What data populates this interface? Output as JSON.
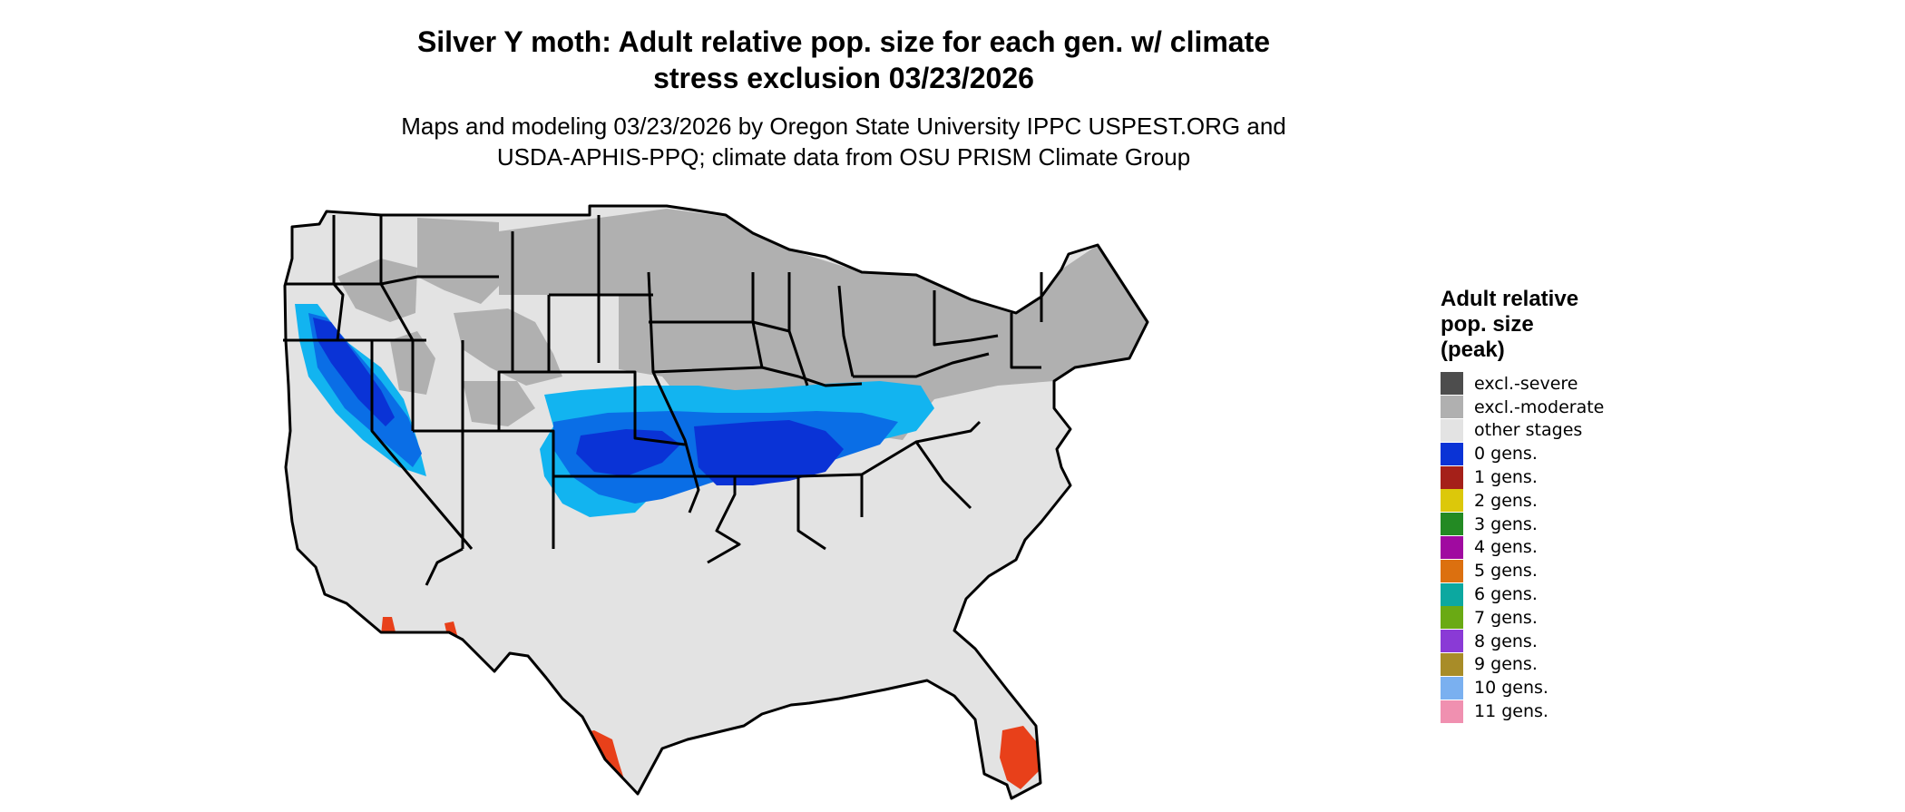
{
  "title": "Silver Y moth: Adult relative pop. size for each gen. w/ climate stress exclusion 03/23/2026",
  "title_lines": [
    "Silver Y moth: Adult relative pop. size for each gen. w/ climate",
    "stress exclusion 03/23/2026"
  ],
  "subtitle_lines": [
    "Maps and modeling 03/23/2026 by Oregon State University IPPC USPEST.ORG and",
    "USDA-APHIS-PPQ; climate data from OSU PRISM Climate Group"
  ],
  "legend": {
    "title_lines": [
      "Adult relative",
      "pop. size",
      "(peak)"
    ],
    "items": [
      {
        "label": "excl.-severe",
        "color": "#4d4d4d"
      },
      {
        "label": "excl.-moderate",
        "color": "#b0b0b0"
      },
      {
        "label": "other stages",
        "color": "#e3e3e3"
      },
      {
        "label": "0 gens.",
        "color": "#0a33d6"
      },
      {
        "label": "1 gens.",
        "color": "#a52019"
      },
      {
        "label": "2 gens.",
        "color": "#dcc80a"
      },
      {
        "label": "3 gens.",
        "color": "#238a23"
      },
      {
        "label": "4 gens.",
        "color": "#a00aa0"
      },
      {
        "label": "5 gens.",
        "color": "#dc700f"
      },
      {
        "label": "6 gens.",
        "color": "#0ca8a0"
      },
      {
        "label": "7 gens.",
        "color": "#6aaa14"
      },
      {
        "label": "8 gens.",
        "color": "#8a3ad6"
      },
      {
        "label": "9 gens.",
        "color": "#a88c28"
      },
      {
        "label": "10 gens.",
        "color": "#7ab0f0"
      },
      {
        "label": "11 gens.",
        "color": "#f090b0"
      }
    ]
  },
  "map": {
    "region": "Contiguous United States",
    "colors": {
      "other_stages": "#e3e3e3",
      "excl_moderate": "#b0b0b0",
      "light_blue": "#12b4f0",
      "mid_blue": "#0a6ee6",
      "deep_blue": "#0a33d6",
      "orange_red": "#e8401a",
      "boundary": "#000000"
    }
  }
}
